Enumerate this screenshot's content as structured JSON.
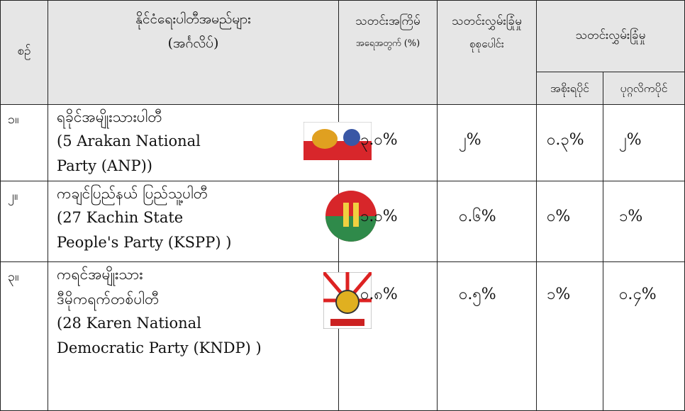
{
  "header": {
    "no": "စဉ်",
    "name": [
      "နိုင်ငံရေးပါတီအမည်များ",
      "(အင်္ဂလိပ်)"
    ],
    "frequency": [
      "သတင်းအကြိမ်",
      "အရေအတွက် (%)"
    ],
    "total": [
      "သတင်းလွှမ်းခြုံမှု",
      "စုစုပေါင်း"
    ],
    "coverage": "သတင်းလွှမ်းခြုံမှု",
    "state": "အစိုးရပိုင်",
    "private": "ပုဂ္ဂလိကပိုင်"
  },
  "rows": [
    {
      "no": "၁။",
      "name": [
        "ရခိုင်အမျိုးသားပါတီ",
        "(5 Arakan National",
        "Party (ANP))"
      ],
      "frequency": "၃.၀%",
      "total": "၂%",
      "state": "၀.၃%",
      "private": "၂%"
    },
    {
      "no": "၂။",
      "name": [
        "ကချင်ပြည်နယ်  ပြည်သူ့ပါတီ",
        "(27 Kachin State",
        "People's Party (KSPP) )"
      ],
      "frequency": "၁.၁%",
      "total": "၀.၆%",
      "state": "၀%",
      "private": "၁%"
    },
    {
      "no": "၃။",
      "name": [
        "ကရင်အမျိုးသား",
        "ဒီမိုကရက်တစ်ပါတီ",
        "(28 Karen National",
        "Democratic Party (KNDP) )"
      ],
      "frequency": "၀.၈%",
      "total": "၀.၅%",
      "state": "၁%",
      "private": "၀.၄%"
    }
  ]
}
